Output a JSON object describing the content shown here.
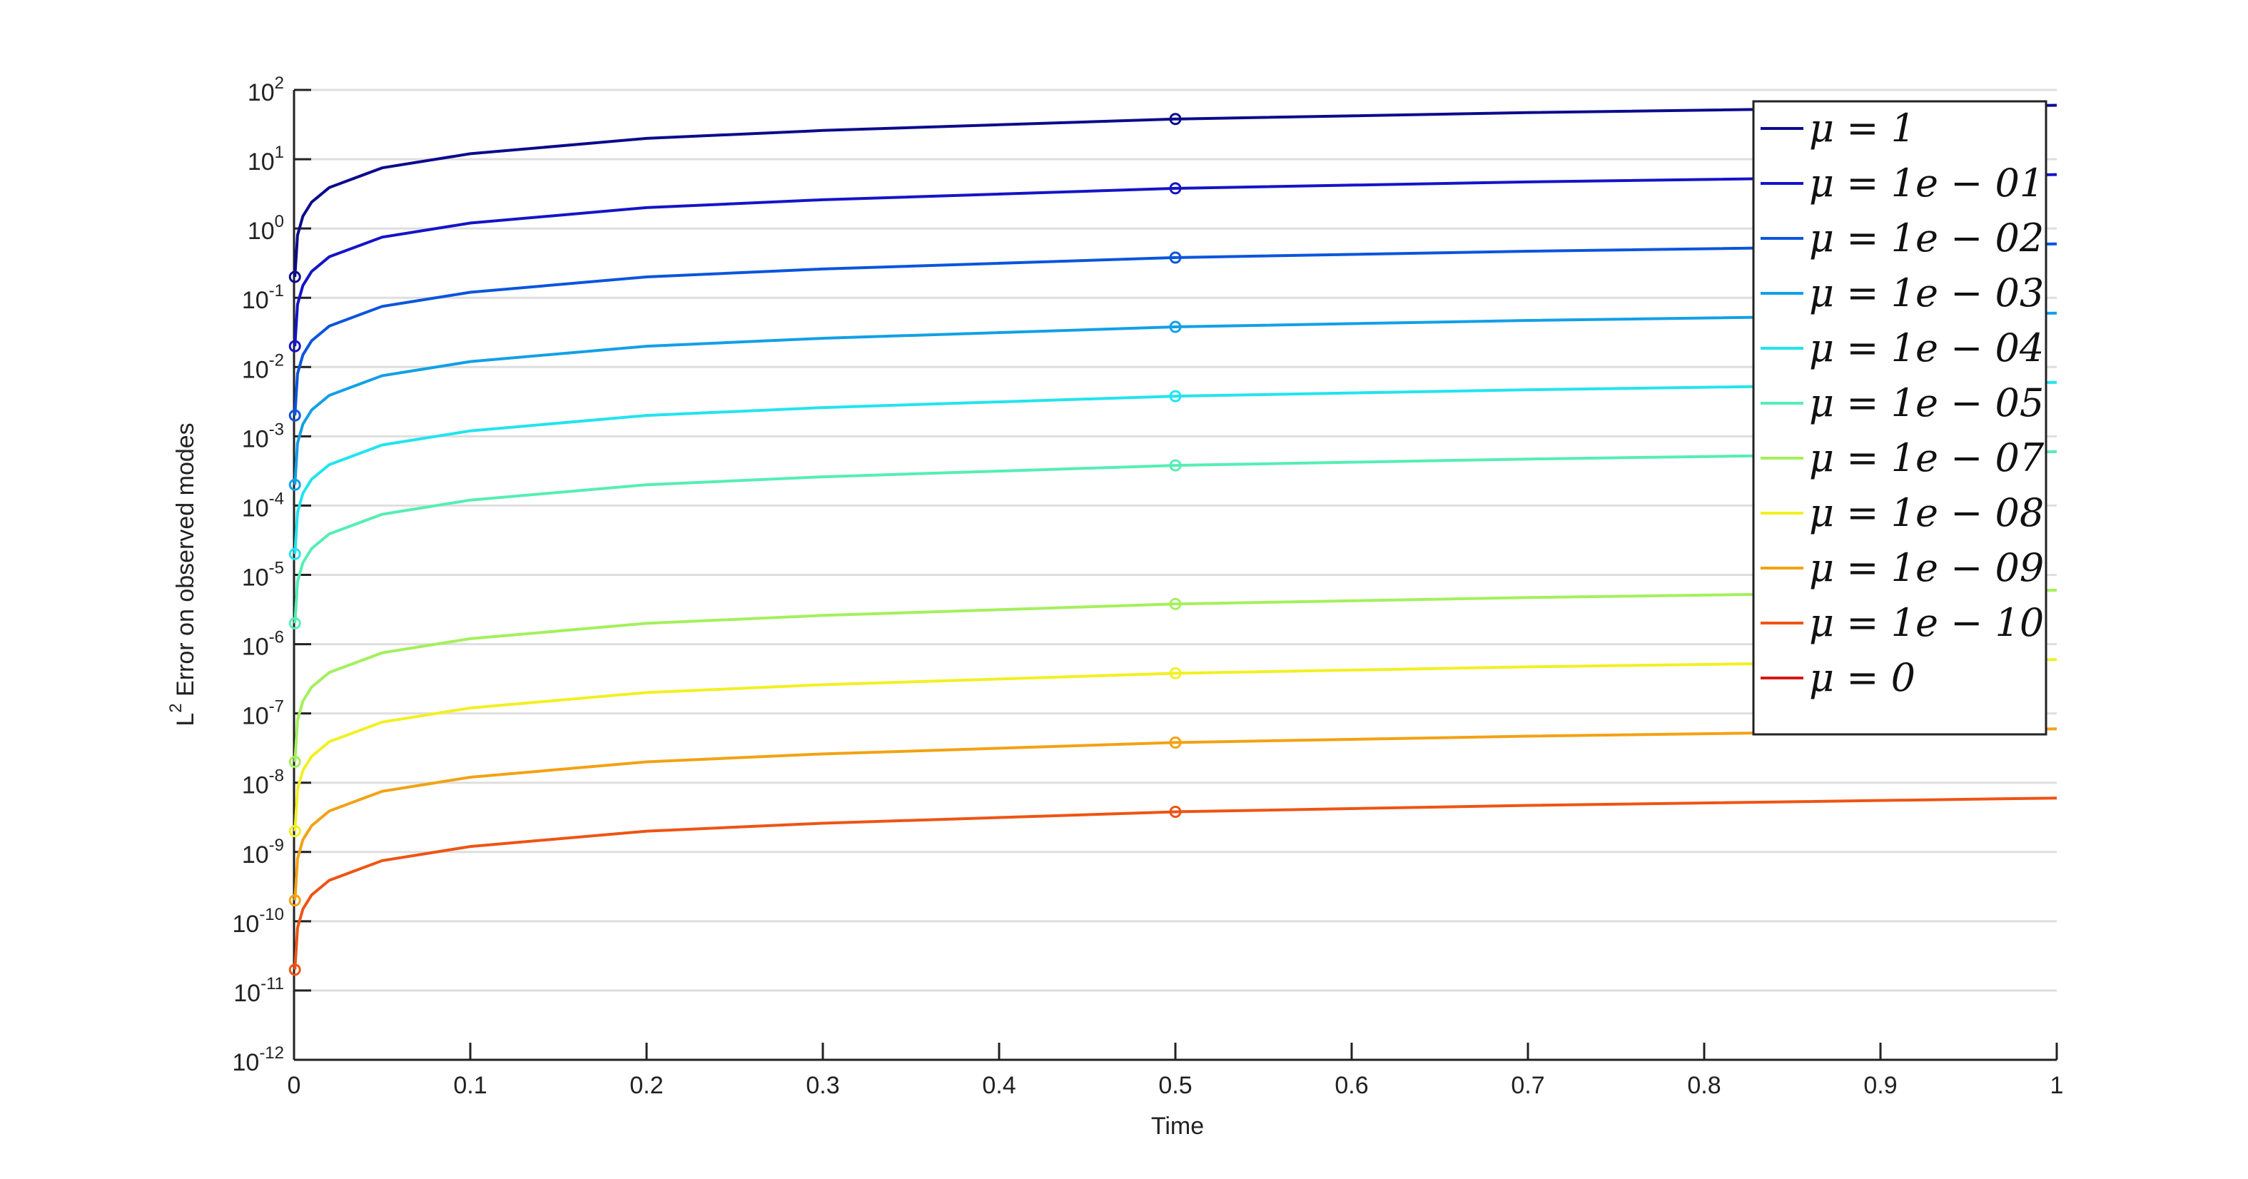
{
  "chart_data": {
    "type": "line",
    "ylabel": "L^2 Error on observed modes",
    "xlabel": "Time",
    "x": [
      0.0005,
      0.002,
      0.005,
      0.01,
      0.02,
      0.05,
      0.1,
      0.2,
      0.3,
      0.5,
      0.7,
      1
    ],
    "series": [
      {
        "name": "μ = 1",
        "color": "#0b0b8c",
        "values": [
          0.2,
          0.8,
          1.5,
          2.4,
          3.9,
          7.5,
          12,
          20,
          26,
          38,
          47,
          60
        ]
      },
      {
        "name": "μ = 1e − 01",
        "color": "#1414c8",
        "values": [
          0.02,
          0.08,
          0.15,
          0.24,
          0.39,
          0.75,
          1.2,
          2,
          2.6,
          3.8,
          4.7,
          6
        ]
      },
      {
        "name": "μ = 1e − 02",
        "color": "#0a55dc",
        "values": [
          0.002,
          0.008,
          0.015,
          0.024,
          0.039,
          0.075,
          0.12,
          0.2,
          0.26,
          0.38,
          0.47,
          0.6
        ]
      },
      {
        "name": "μ = 1e − 03",
        "color": "#12a0e6",
        "values": [
          0.0002,
          0.0008,
          0.0015,
          0.0024,
          0.0039,
          0.0075,
          0.012,
          0.02,
          0.026,
          0.038,
          0.047,
          0.06
        ]
      },
      {
        "name": "μ = 1e − 04",
        "color": "#22e4ee",
        "values": [
          2e-05,
          8e-05,
          0.00015,
          0.00024,
          0.00039,
          0.00075,
          0.0012,
          0.002,
          0.0026,
          0.0038,
          0.0047,
          0.006
        ]
      },
      {
        "name": "μ = 1e − 05",
        "color": "#55eeb4",
        "values": [
          2e-06,
          8e-06,
          1.5e-05,
          2.4e-05,
          3.9e-05,
          7.5e-05,
          0.00012,
          0.0002,
          0.00026,
          0.00038,
          0.00047,
          0.0006
        ]
      },
      {
        "name": "μ = 1e − 07",
        "color": "#a4f05c",
        "values": [
          2e-08,
          8e-08,
          1.5e-07,
          2.4e-07,
          3.9e-07,
          7.5e-07,
          1.2e-06,
          2e-06,
          2.6e-06,
          3.8e-06,
          4.7e-06,
          6e-06
        ]
      },
      {
        "name": "μ = 1e − 08",
        "color": "#f2f022",
        "values": [
          2e-09,
          8e-09,
          1.5e-08,
          2.4e-08,
          3.9e-08,
          7.5e-08,
          1.2e-07,
          2e-07,
          2.6e-07,
          3.8e-07,
          4.7e-07,
          6e-07
        ]
      },
      {
        "name": "μ = 1e − 09",
        "color": "#f2a214",
        "values": [
          2e-10,
          8e-10,
          1.5e-09,
          2.4e-09,
          3.9e-09,
          7.5e-09,
          1.2e-08,
          2e-08,
          2.6e-08,
          3.8e-08,
          4.7e-08,
          6e-08
        ]
      },
      {
        "name": "μ = 1e − 10",
        "color": "#ee5414",
        "values": [
          2e-11,
          8e-11,
          1.5e-10,
          2.4e-10,
          3.9e-10,
          7.5e-10,
          1.2e-09,
          2e-09,
          2.6e-09,
          3.8e-09,
          4.7e-09,
          6e-09
        ]
      },
      {
        "name": "μ = 0",
        "color": "#d81818",
        "values": [
          null,
          null,
          null,
          null,
          null,
          null,
          null,
          null,
          null,
          null,
          null,
          null
        ]
      }
    ],
    "xlim": [
      0,
      1
    ],
    "xticks": [
      0,
      0.1,
      0.2,
      0.3,
      0.4,
      0.5,
      0.6,
      0.7,
      0.8,
      0.9,
      1
    ],
    "ylim": [
      1e-12,
      100
    ],
    "log_y": true,
    "yticks": [
      {
        "value": 1e-12,
        "label": "10^-12"
      },
      {
        "value": 1e-11,
        "label": "10^-11"
      },
      {
        "value": 1e-10,
        "label": "10^-10"
      },
      {
        "value": 1e-09,
        "label": "10^-9"
      },
      {
        "value": 1e-08,
        "label": "10^-8"
      },
      {
        "value": 1e-07,
        "label": "10^-7"
      },
      {
        "value": 1e-06,
        "label": "10^-6"
      },
      {
        "value": 1e-05,
        "label": "10^-5"
      },
      {
        "value": 0.0001,
        "label": "10^-4"
      },
      {
        "value": 0.001,
        "label": "10^-3"
      },
      {
        "value": 0.01,
        "label": "10^-2"
      },
      {
        "value": 0.1,
        "label": "10^-1"
      },
      {
        "value": 1,
        "label": "10^0"
      },
      {
        "value": 10,
        "label": "10^1"
      },
      {
        "value": 100,
        "label": "10^2"
      }
    ],
    "grid": "y",
    "legend": "top-right"
  }
}
